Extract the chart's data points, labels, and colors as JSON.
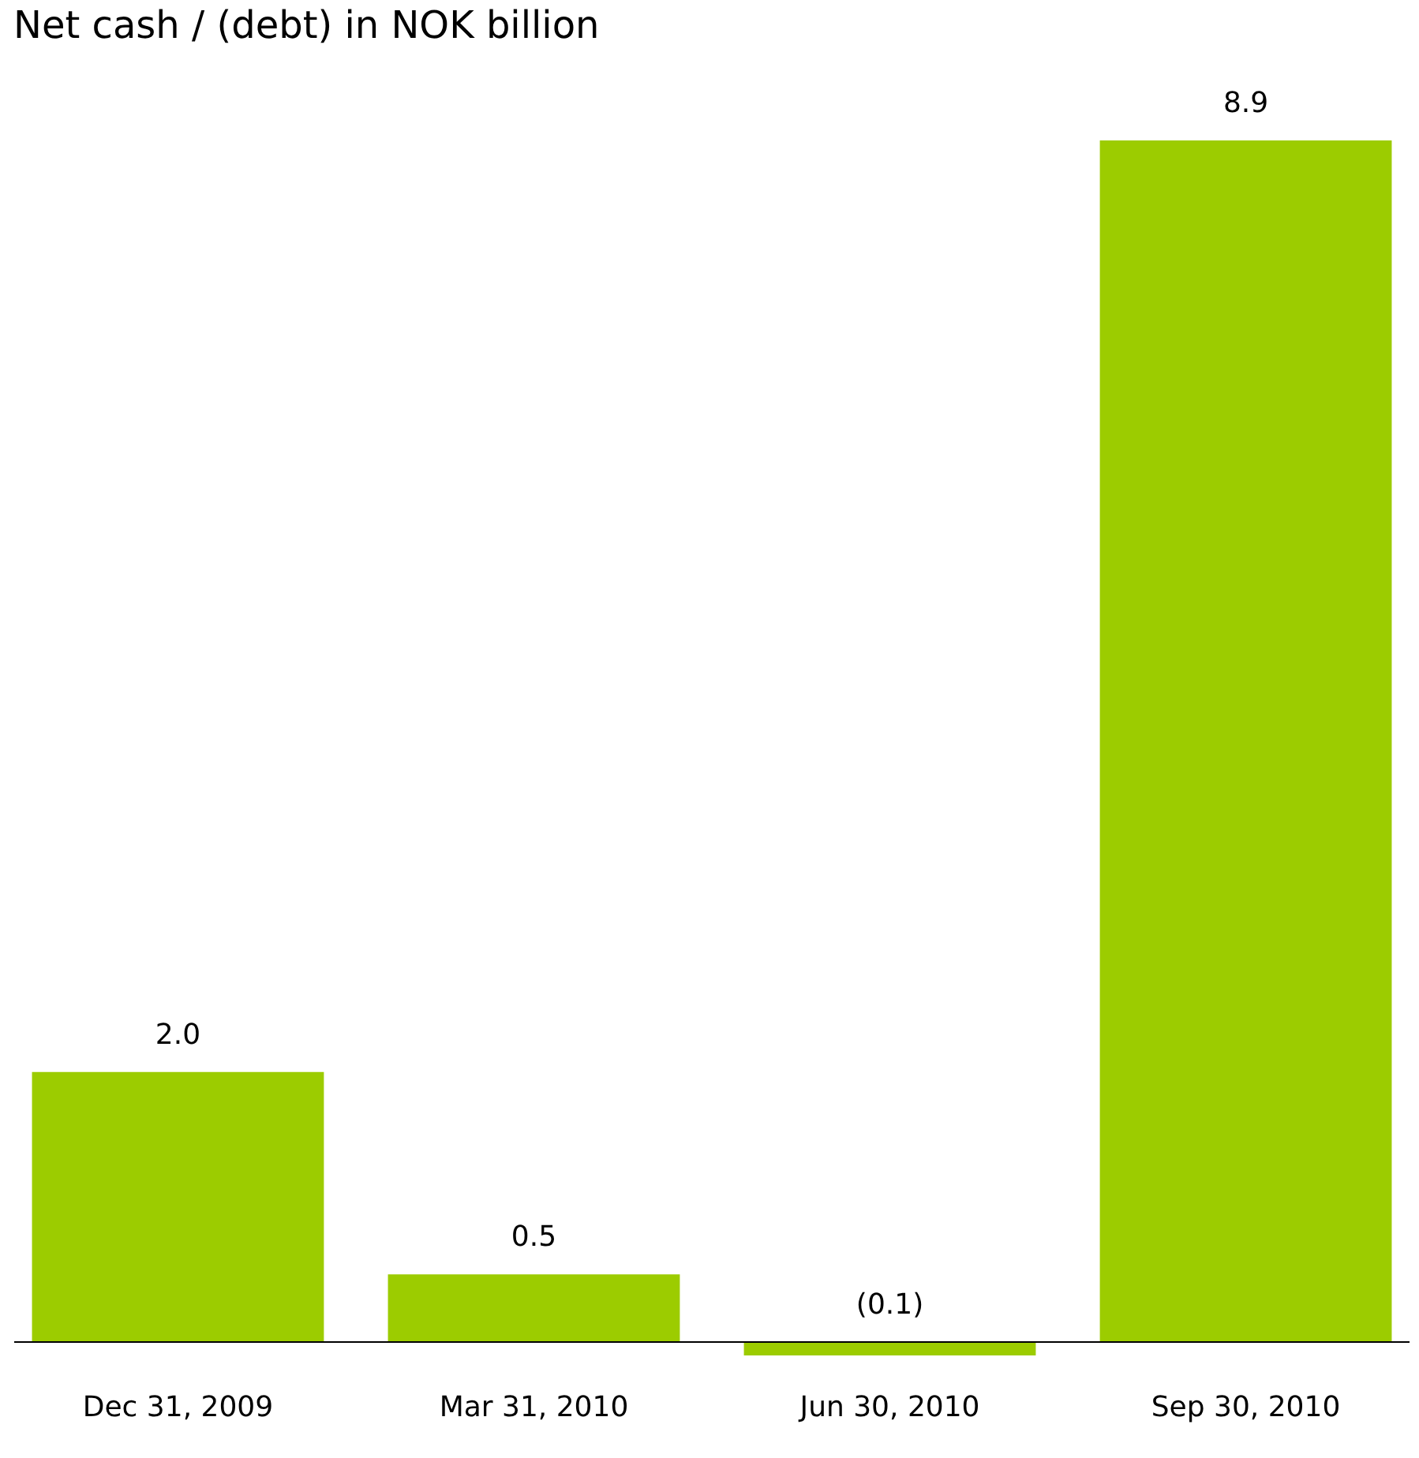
{
  "chart_data": {
    "type": "bar",
    "title": "Net cash / (debt) in NOK billion",
    "categories": [
      "Dec 31, 2009",
      "Mar 31, 2010",
      "Jun 30, 2010",
      "Sep 30, 2010"
    ],
    "values": [
      2.0,
      0.5,
      -0.1,
      8.9
    ],
    "value_labels": [
      "2.0",
      "0.5",
      "(0.1)",
      "8.9"
    ],
    "color": "#9ccc00",
    "grid": false,
    "tick_labels": "x"
  }
}
